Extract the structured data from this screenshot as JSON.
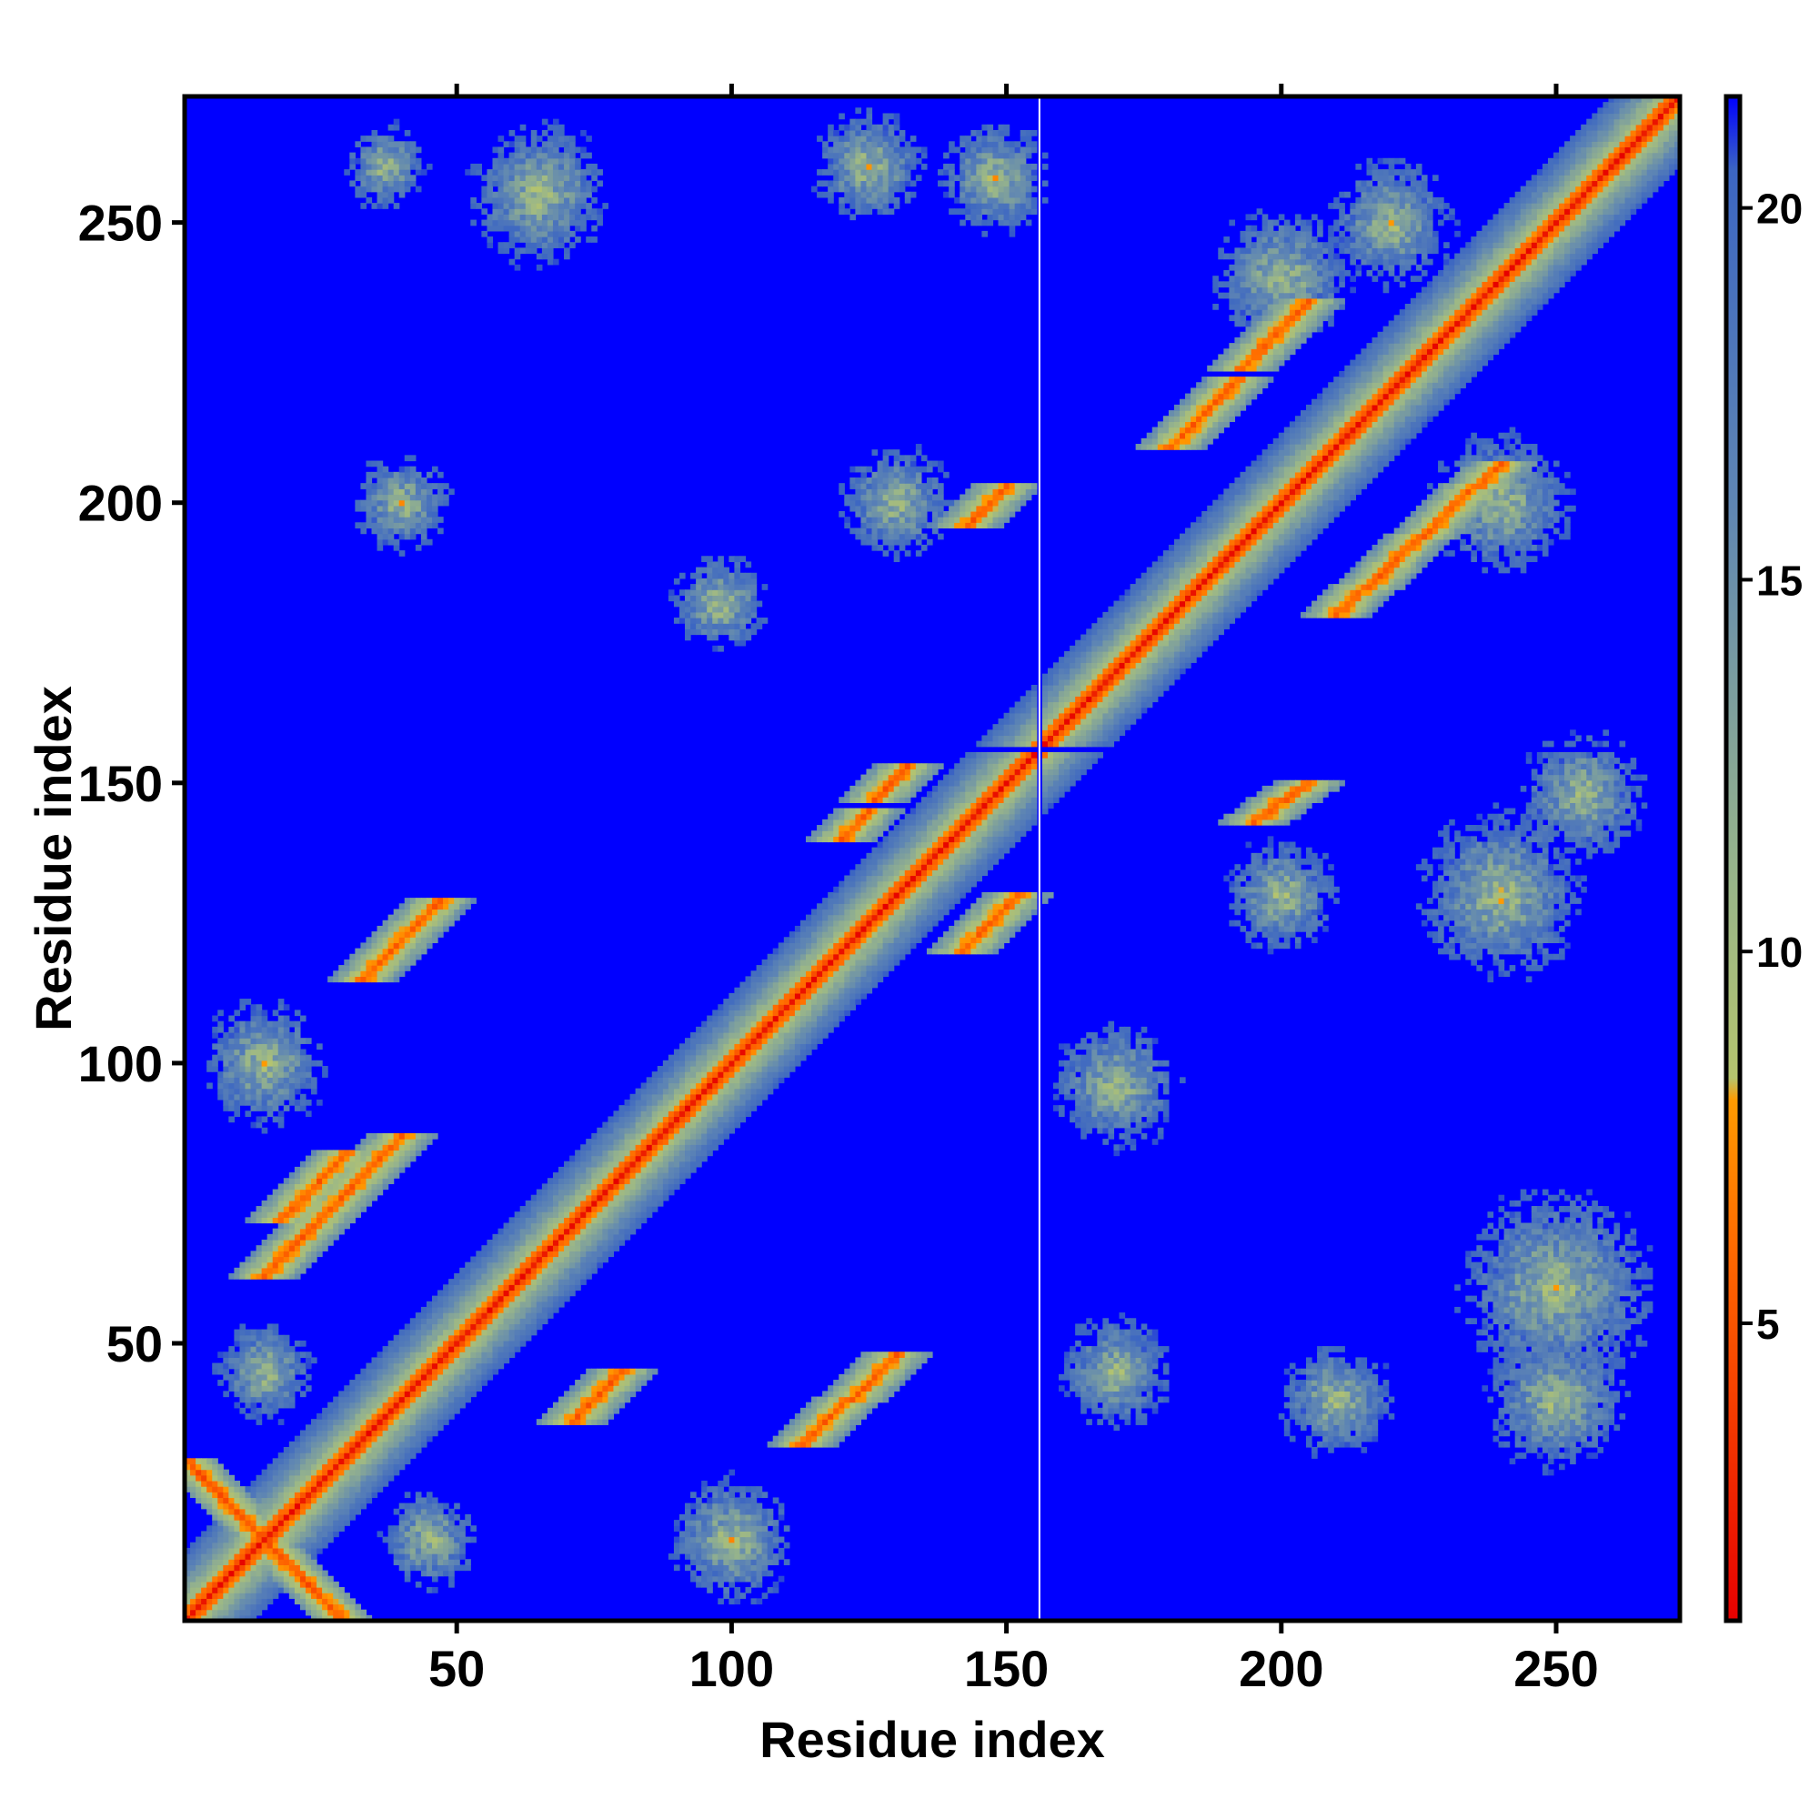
{
  "chart_data": {
    "type": "heatmap",
    "title": "",
    "xlabel": "Residue index",
    "ylabel": "Residue index",
    "n_residues": 272,
    "xlim": [
      1,
      272
    ],
    "ylim": [
      1,
      272
    ],
    "x_ticks": [
      50,
      100,
      150,
      200,
      250
    ],
    "y_ticks": [
      50,
      100,
      150,
      200,
      250
    ],
    "x_tick_labels": [
      "50",
      "100",
      "150",
      "200",
      "250"
    ],
    "y_tick_labels": [
      "50",
      "100",
      "150",
      "200",
      "250"
    ],
    "colorbar": {
      "ticks": [
        5,
        10,
        15,
        20
      ],
      "tick_labels": [
        "5",
        "10",
        "15",
        "20"
      ],
      "range": [
        1.0,
        21.5
      ],
      "stops": [
        {
          "value": 1.0,
          "color": "#e60000"
        },
        {
          "value": 6.0,
          "color": "#ff6a00"
        },
        {
          "value": 8.0,
          "color": "#ff9a00"
        },
        {
          "value": 8.3,
          "color": "#b5c46e"
        },
        {
          "value": 11.0,
          "color": "#98b58a"
        },
        {
          "value": 16.0,
          "color": "#5f86b3"
        },
        {
          "value": 20.5,
          "color": "#3c66c2"
        },
        {
          "value": 21.5,
          "color": "#0000ff"
        }
      ]
    },
    "background_value_color": "#0000ff",
    "missing_residue": 156,
    "contact_features": [
      {
        "kind": "diagonal",
        "from": 1,
        "to": 272
      },
      {
        "kind": "antiparallel",
        "center": [
          15,
          15
        ],
        "half_length": 14
      },
      {
        "kind": "parallel",
        "i": [
          15,
          40
        ],
        "j": [
          62,
          87
        ]
      },
      {
        "kind": "parallel",
        "i": [
          18,
          30
        ],
        "j": [
          72,
          84
        ]
      },
      {
        "kind": "parallel",
        "i": [
          33,
          47
        ],
        "j": [
          115,
          129
        ]
      },
      {
        "kind": "parallel",
        "i": [
          71,
          80
        ],
        "j": [
          36,
          45
        ]
      },
      {
        "kind": "parallel",
        "i": [
          113,
          130
        ],
        "j": [
          32,
          48
        ]
      },
      {
        "kind": "parallel",
        "i": [
          120,
          132
        ],
        "j": [
          140,
          153
        ]
      },
      {
        "kind": "parallel",
        "i": [
          142,
          152
        ],
        "j": [
          120,
          130
        ]
      },
      {
        "kind": "parallel",
        "i": [
          143,
          150
        ],
        "j": [
          196,
          203
        ]
      },
      {
        "kind": "parallel",
        "i": [
          195,
          205
        ],
        "j": [
          143,
          150
        ]
      },
      {
        "kind": "parallel",
        "i": [
          180,
          205
        ],
        "j": [
          210,
          236
        ]
      },
      {
        "kind": "parallel",
        "i": [
          210,
          240
        ],
        "j": [
          180,
          207
        ]
      },
      {
        "kind": "patch",
        "center": [
          65,
          255
        ],
        "radius": 10
      },
      {
        "kind": "patch",
        "center": [
          37,
          260
        ],
        "radius": 6
      },
      {
        "kind": "patch",
        "center": [
          98,
          182
        ],
        "radius": 7
      },
      {
        "kind": "patch",
        "center": [
          170,
          96
        ],
        "radius": 9
      },
      {
        "kind": "patch",
        "center": [
          125,
          260
        ],
        "radius": 8
      },
      {
        "kind": "patch",
        "center": [
          148,
          258
        ],
        "radius": 8
      },
      {
        "kind": "patch",
        "center": [
          250,
          60
        ],
        "radius": 14
      },
      {
        "kind": "patch",
        "center": [
          250,
          40
        ],
        "radius": 10
      },
      {
        "kind": "patch",
        "center": [
          240,
          130
        ],
        "radius": 12
      },
      {
        "kind": "patch",
        "center": [
          255,
          148
        ],
        "radius": 9
      },
      {
        "kind": "patch",
        "center": [
          170,
          45
        ],
        "radius": 8
      },
      {
        "kind": "patch",
        "center": [
          210,
          40
        ],
        "radius": 8
      },
      {
        "kind": "patch",
        "center": [
          100,
          15
        ],
        "radius": 9
      },
      {
        "kind": "patch",
        "center": [
          45,
          15
        ],
        "radius": 7
      },
      {
        "kind": "patch",
        "center": [
          15,
          100
        ],
        "radius": 9
      },
      {
        "kind": "patch",
        "center": [
          40,
          200
        ],
        "radius": 7
      },
      {
        "kind": "patch",
        "center": [
          15,
          45
        ],
        "radius": 7
      },
      {
        "kind": "patch",
        "center": [
          200,
          240
        ],
        "radius": 10
      },
      {
        "kind": "patch",
        "center": [
          240,
          200
        ],
        "radius": 10
      },
      {
        "kind": "patch",
        "center": [
          220,
          250
        ],
        "radius": 9
      },
      {
        "kind": "patch",
        "center": [
          130,
          200
        ],
        "radius": 8
      },
      {
        "kind": "patch",
        "center": [
          200,
          130
        ],
        "radius": 8
      }
    ]
  }
}
